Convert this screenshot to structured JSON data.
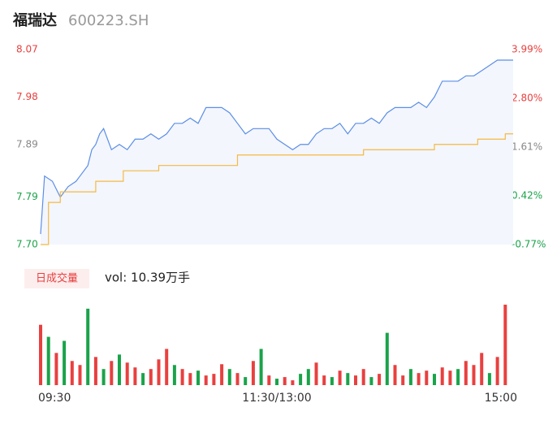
{
  "header": {
    "name": "福瑞达",
    "code": "600223.SH"
  },
  "chart_data": [
    {
      "type": "line",
      "xlim": [
        0,
        240
      ],
      "xticks": [
        {
          "value": 0,
          "label": "09:30"
        },
        {
          "value": 120,
          "label": "11:30/13:00"
        },
        {
          "value": 240,
          "label": "15:00"
        }
      ],
      "ylim": [
        7.7,
        8.07
      ],
      "yticks": [
        {
          "value": 7.7,
          "label": "7.70"
        },
        7.79,
        7.89,
        7.98,
        8.07
      ],
      "ytick_colors": [
        "#1aa34a",
        "#1aa34a",
        "#888888",
        "#e8403f",
        "#e8403f"
      ],
      "y2lim": [
        -0.77,
        3.99
      ],
      "y2ticks": [
        {
          "value": -0.77,
          "label": "-0.77%"
        },
        {
          "value": 0.42,
          "label": "0.42%"
        },
        {
          "value": 1.61,
          "label": "1.61%"
        },
        {
          "value": 2.8,
          "label": "2.80%"
        },
        {
          "value": 3.99,
          "label": "3.99%"
        }
      ],
      "y2tick_colors": [
        "#1aa34a",
        "#1aa34a",
        "#888888",
        "#e8403f",
        "#e8403f"
      ],
      "series": [
        {
          "color": "#5b8ee6",
          "fill": "#f3f6fd",
          "x": [
            0,
            2,
            6,
            10,
            14,
            18,
            20,
            24,
            26,
            28,
            30,
            32,
            36,
            40,
            44,
            48,
            52,
            56,
            60,
            64,
            68,
            72,
            76,
            80,
            84,
            88,
            92,
            96,
            100,
            104,
            108,
            112,
            116,
            120,
            124,
            128,
            132,
            136,
            140,
            144,
            148,
            152,
            156,
            160,
            164,
            168,
            172,
            176,
            180,
            184,
            188,
            192,
            196,
            200,
            204,
            208,
            212,
            216,
            220,
            224,
            228,
            232,
            236,
            240
          ],
          "values": [
            7.72,
            7.83,
            7.82,
            7.79,
            7.81,
            7.82,
            7.83,
            7.85,
            7.88,
            7.89,
            7.91,
            7.92,
            7.88,
            7.89,
            7.88,
            7.9,
            7.9,
            7.91,
            7.9,
            7.91,
            7.93,
            7.93,
            7.94,
            7.93,
            7.96,
            7.96,
            7.96,
            7.95,
            7.93,
            7.91,
            7.92,
            7.92,
            7.92,
            7.9,
            7.89,
            7.88,
            7.89,
            7.89,
            7.91,
            7.92,
            7.92,
            7.93,
            7.91,
            7.93,
            7.93,
            7.94,
            7.93,
            7.95,
            7.96,
            7.96,
            7.96,
            7.97,
            7.96,
            7.98,
            8.01,
            8.01,
            8.01,
            8.02,
            8.02,
            8.03,
            8.04,
            8.05,
            8.05,
            8.05
          ]
        },
        {
          "color": "#f5b942",
          "step": true,
          "x": [
            0,
            4,
            10,
            28,
            42,
            60,
            100,
            132,
            164,
            200,
            222,
            236,
            240
          ],
          "values": [
            7.7,
            7.78,
            7.8,
            7.82,
            7.84,
            7.85,
            7.87,
            7.87,
            7.88,
            7.89,
            7.9,
            7.91,
            7.91
          ]
        }
      ]
    },
    {
      "type": "bar",
      "tab": "日成交量",
      "volume_label": "vol: 10.39万手",
      "xlim": [
        0,
        240
      ],
      "ylim": [
        0,
        105
      ],
      "up_color": "#e8403f",
      "down_color": "#1aa34a",
      "x": [
        0,
        4,
        8,
        12,
        16,
        20,
        24,
        28,
        32,
        36,
        40,
        44,
        48,
        52,
        56,
        60,
        64,
        68,
        72,
        76,
        80,
        84,
        88,
        92,
        96,
        100,
        104,
        108,
        112,
        116,
        120,
        124,
        128,
        132,
        136,
        140,
        144,
        148,
        152,
        156,
        160,
        164,
        168,
        172,
        176,
        180,
        184,
        188,
        192,
        196,
        200,
        204,
        208,
        212,
        216,
        220,
        224,
        228,
        232,
        236
      ],
      "values": [
        75,
        60,
        40,
        55,
        30,
        25,
        95,
        35,
        20,
        30,
        38,
        28,
        22,
        15,
        20,
        32,
        45,
        25,
        20,
        15,
        18,
        12,
        14,
        26,
        20,
        15,
        10,
        30,
        45,
        12,
        8,
        10,
        6,
        14,
        20,
        28,
        12,
        10,
        18,
        15,
        12,
        20,
        10,
        14,
        65,
        25,
        12,
        20,
        15,
        18,
        14,
        22,
        18,
        20,
        30,
        25,
        40,
        15,
        35,
        100
      ],
      "up": [
        true,
        false,
        true,
        false,
        true,
        true,
        false,
        true,
        false,
        true,
        false,
        true,
        true,
        false,
        true,
        true,
        true,
        false,
        true,
        true,
        false,
        true,
        true,
        true,
        false,
        true,
        false,
        true,
        false,
        true,
        false,
        true,
        true,
        false,
        false,
        true,
        true,
        false,
        true,
        false,
        true,
        true,
        false,
        true,
        false,
        true,
        true,
        false,
        true,
        true,
        false,
        true,
        true,
        false,
        true,
        true,
        true,
        false,
        true,
        true
      ]
    }
  ]
}
